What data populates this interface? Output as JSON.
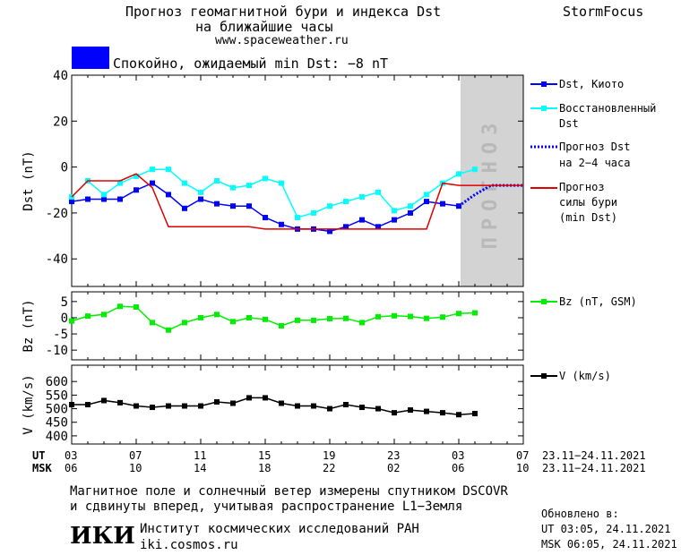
{
  "header": {
    "title_line1": "Прогноз геомагнитной бури и индекса Dst",
    "title_line2": "на ближайшие часы",
    "url": "www.spaceweather.ru",
    "brand": "StormFocus",
    "status_text": "Спокойно, ожидаемый min Dst: −8 nT",
    "status_color": "#0000ff"
  },
  "colors": {
    "dst": "#0000ff",
    "restored": "#00ffff",
    "forecast_dst": "#0000ff",
    "forecast_storm": "#dd0000",
    "bz": "#00ee00",
    "v": "#000000",
    "forecast_band": "#d3d3d3"
  },
  "chart_data": [
    {
      "type": "line",
      "ylabel": "Dst (nT)",
      "ylim": [
        -52,
        40
      ],
      "yticks": [
        40,
        20,
        0,
        -20,
        -40
      ],
      "xlim": [
        0,
        28
      ],
      "x_hours_since_ut_03": [
        0,
        1,
        2,
        3,
        4,
        5,
        6,
        7,
        8,
        9,
        10,
        11,
        12,
        13,
        14,
        15,
        16,
        17,
        18,
        19,
        20,
        21,
        22,
        23,
        24,
        25,
        26,
        27,
        28
      ],
      "forecast_band_start": 24,
      "forecast_band_label": "ПРОГНОЗ",
      "series": [
        {
          "name": "Dst, Киото",
          "x": [
            0,
            1,
            2,
            3,
            4,
            5,
            6,
            7,
            8,
            9,
            10,
            11,
            12,
            13,
            14,
            15,
            16,
            17,
            18,
            19,
            20,
            21,
            22,
            23,
            24
          ],
          "values": [
            -15,
            -14,
            -14,
            -14,
            -10,
            -7,
            -12,
            -18,
            -14,
            -16,
            -17,
            -17,
            -22,
            -25,
            -27,
            -27,
            -28,
            -26,
            -23,
            -26,
            -23,
            -20,
            -15,
            -16,
            -17
          ]
        },
        {
          "name": "Восстановленный Dst",
          "x": [
            0,
            1,
            2,
            3,
            4,
            5,
            6,
            7,
            8,
            9,
            10,
            11,
            12,
            13,
            14,
            15,
            16,
            17,
            18,
            19,
            20,
            21,
            22,
            23,
            24,
            25
          ],
          "values": [
            -13,
            -6,
            -12,
            -7,
            -4,
            -1,
            -1,
            -7,
            -11,
            -6,
            -9,
            -8,
            -5,
            -7,
            -22,
            -20,
            -17,
            -15,
            -13,
            -11,
            -19,
            -17,
            -12,
            -7,
            -3,
            -1
          ]
        },
        {
          "name": "Прогноз Dst на 2-4 часа",
          "x": [
            24,
            25,
            26,
            27,
            28
          ],
          "values": [
            -17,
            -12,
            -8,
            -8,
            -8
          ]
        },
        {
          "name": "Прогноз силы бури (min Dst)",
          "x": [
            0,
            1,
            2,
            3,
            4,
            5,
            6,
            7,
            8,
            9,
            10,
            11,
            12,
            13,
            14,
            15,
            16,
            17,
            18,
            19,
            20,
            21,
            22,
            23,
            24,
            25,
            26,
            27,
            28
          ],
          "values": [
            -13,
            -6,
            -6,
            -6,
            -3,
            -9,
            -26,
            -26,
            -26,
            -26,
            -26,
            -26,
            -27,
            -27,
            -27,
            -27,
            -27,
            -27,
            -27,
            -27,
            -27,
            -27,
            -27,
            -7,
            -8,
            -8,
            -8,
            -8,
            -8
          ]
        }
      ]
    },
    {
      "type": "line",
      "ylabel": "Bz (nT)",
      "ylim": [
        -13,
        8
      ],
      "yticks": [
        5,
        0,
        -5,
        -10
      ],
      "series": [
        {
          "name": "Bz (nT, GSM)",
          "x": [
            0,
            1,
            2,
            3,
            4,
            5,
            6,
            7,
            8,
            9,
            10,
            11,
            12,
            13,
            14,
            15,
            16,
            17,
            18,
            19,
            20,
            21,
            22,
            23,
            24,
            25
          ],
          "values": [
            -1,
            0.5,
            1,
            3.5,
            3.3,
            -1.5,
            -3.8,
            -1.5,
            0,
            1,
            -1.2,
            0,
            -0.5,
            -2.5,
            -0.8,
            -0.8,
            -0.3,
            -0.2,
            -1.5,
            0.3,
            0.6,
            0.4,
            -0.2,
            0.2,
            1.3,
            1.5
          ]
        }
      ]
    },
    {
      "type": "line",
      "ylabel": "V (km/s)",
      "ylim": [
        370,
        660
      ],
      "yticks": [
        600,
        550,
        500,
        450,
        400
      ],
      "series": [
        {
          "name": "V (km/s)",
          "x": [
            0,
            1,
            2,
            3,
            4,
            5,
            6,
            7,
            8,
            9,
            10,
            11,
            12,
            13,
            14,
            15,
            16,
            17,
            18,
            19,
            20,
            21,
            22,
            23,
            24,
            25
          ],
          "values": [
            515,
            515,
            530,
            522,
            510,
            505,
            510,
            510,
            510,
            525,
            520,
            540,
            540,
            520,
            510,
            510,
            500,
            515,
            505,
            500,
            485,
            495,
            490,
            485,
            478,
            482
          ]
        }
      ]
    }
  ],
  "axes": {
    "ut_label": "UT",
    "msk_label": "MSK",
    "ut_ticks": [
      "03",
      "07",
      "11",
      "15",
      "19",
      "23",
      "03",
      "07"
    ],
    "msk_ticks": [
      "06",
      "10",
      "14",
      "18",
      "22",
      "02",
      "06",
      "10"
    ],
    "ut_range": "23.11−24.11.2021",
    "msk_range": "23.11−24.11.2021"
  },
  "legend": {
    "dst": "Dst, Киото",
    "restored_1": "Восстановленный",
    "restored_2": "Dst",
    "fdst_1": "Прогноз Dst",
    "fdst_2": "на 2−4 часа",
    "fstorm_1": "Прогноз",
    "fstorm_2": "силы бури",
    "fstorm_3": "(min Dst)",
    "bz": "Bz (nT, GSM)",
    "v": "V (km/s)"
  },
  "footer": {
    "note_line1": "Магнитное поле и солнечный ветер измерены спутником DSCOVR",
    "note_line2": "и сдвинуты вперед, учитывая распространение L1−Земля",
    "logo": "ИКИ",
    "institute": "Институт космических исследований РАН",
    "site": "iki.cosmos.ru",
    "updated_title": "Обновлено в:",
    "updated_ut": "UT  03:05, 24.11.2021",
    "updated_msk": "MSK 06:05, 24.11.2021"
  }
}
